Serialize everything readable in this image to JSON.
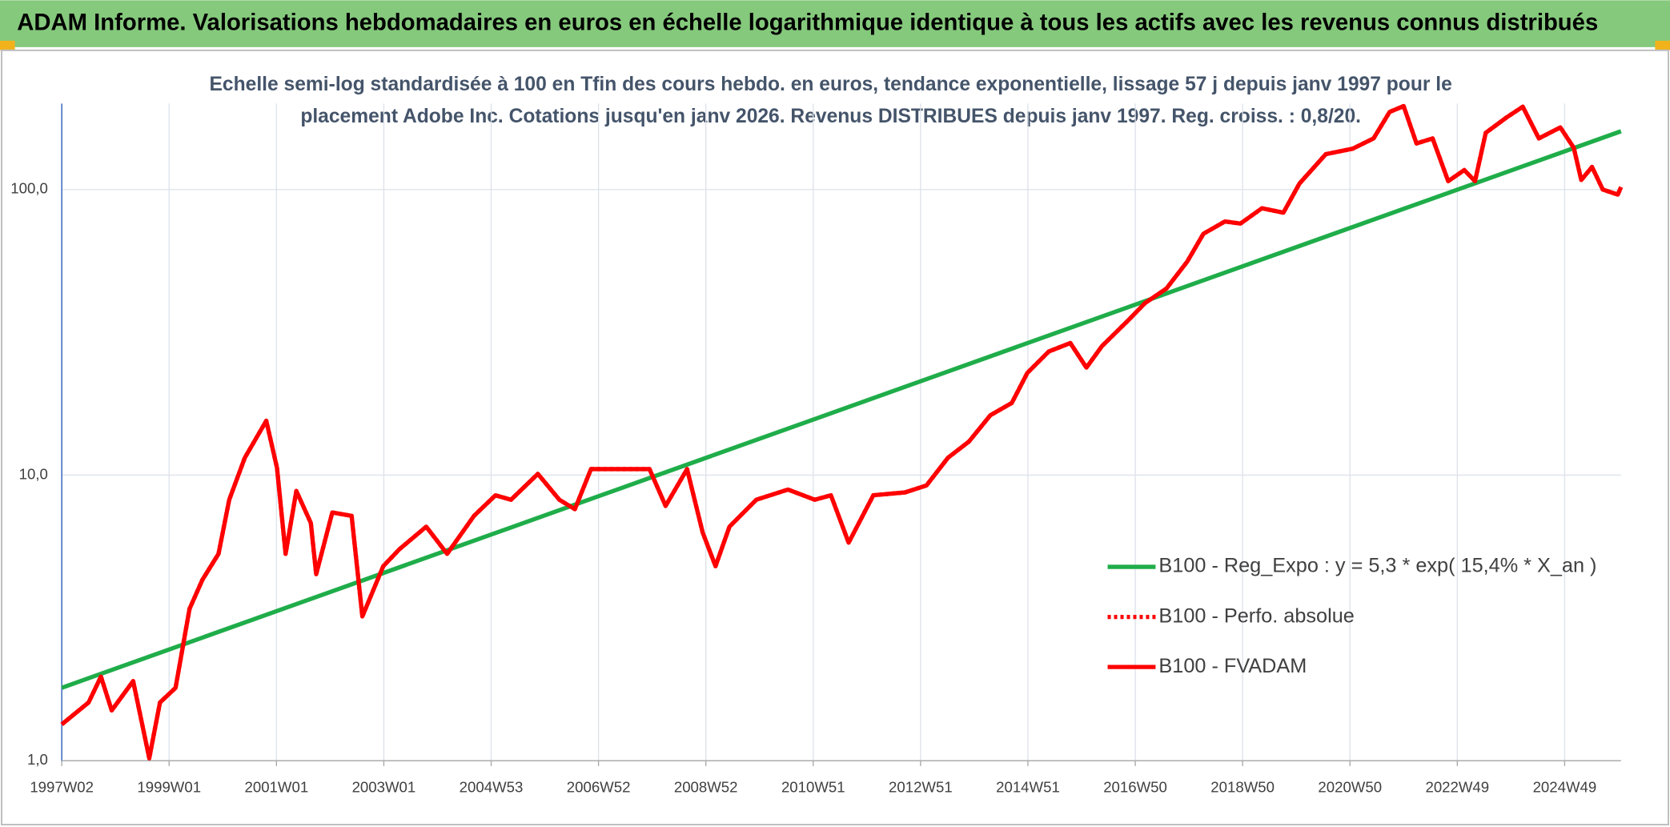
{
  "chart_data": {
    "type": "line",
    "title": "ADAM Informe. Valorisations hebdomadaires en euros en échelle logarithmique identique à tous les actifs avec les revenus connus distribués",
    "subtitle": [
      "Echelle semi-log standardisée à 100 en Tfin des cours hebdo. en euros, tendance exponentielle, lissage 57 j depuis janv 1997 pour le",
      "placement Adobe Inc. Cotations jusqu'en janv 2026. Revenus DISTRIBUES depuis janv 1997. Reg. croiss. : 0,8/20."
    ],
    "log_scale": true,
    "grid": true,
    "legend_position": "right",
    "xlim": [
      1997.0,
      2026.05
    ],
    "xticks": [
      {
        "value": 1997.0,
        "label": "1997W02"
      },
      {
        "value": 1999.0,
        "label": "1999W01"
      },
      {
        "value": 2001.0,
        "label": "2001W01"
      },
      {
        "value": 2003.0,
        "label": "2003W01"
      },
      {
        "value": 2005.0,
        "label": "2004W53"
      },
      {
        "value": 2007.0,
        "label": "2006W52"
      },
      {
        "value": 2009.0,
        "label": "2008W52"
      },
      {
        "value": 2011.0,
        "label": "2010W51"
      },
      {
        "value": 2013.0,
        "label": "2012W51"
      },
      {
        "value": 2015.0,
        "label": "2014W51"
      },
      {
        "value": 2017.0,
        "label": "2016W50"
      },
      {
        "value": 2019.0,
        "label": "2018W50"
      },
      {
        "value": 2021.0,
        "label": "2020W50"
      },
      {
        "value": 2023.0,
        "label": "2022W49"
      },
      {
        "value": 2025.0,
        "label": "2024W49"
      }
    ],
    "ylim": [
      1,
      200
    ],
    "yticks": [
      {
        "value": 1,
        "label": "1,0"
      },
      {
        "value": 10,
        "label": "10,0"
      },
      {
        "value": 100,
        "label": "100,0"
      }
    ],
    "series": [
      {
        "name": "B100 - Reg_Expo : y = 5,3 * exp( 15,4% *  X_an )",
        "color": "#1fad4a",
        "style": "solid",
        "x": [
          1997.0,
          2026.05
        ],
        "values": [
          1.8,
          160
        ]
      },
      {
        "name": "B100 - Perfo. absolue",
        "color": "#ff0000",
        "style": "dotted",
        "x": [
          1997.0,
          1997.5,
          1997.73,
          1997.93,
          1998.33,
          1998.63,
          1998.83,
          1999.12,
          1999.38,
          1999.62,
          1999.92,
          2000.12,
          2000.41,
          2000.81,
          2001.01,
          2001.17,
          2001.37,
          2001.64,
          2001.74,
          2002.04,
          2002.4,
          2002.6,
          2002.79,
          2002.99,
          2003.29,
          2003.79,
          2004.18,
          2004.68,
          2005.08,
          2005.37,
          2005.87,
          2006.27,
          2006.56,
          2006.86,
          2007.56,
          2007.95,
          2008.25,
          2008.65,
          2008.94,
          2009.18,
          2009.44,
          2009.94,
          2010.53,
          2011.03,
          2011.33,
          2011.66,
          2012.12,
          2012.71,
          2013.11,
          2013.51,
          2013.9,
          2014.3,
          2014.7,
          2014.99,
          2015.39,
          2015.79,
          2016.09,
          2016.38,
          2016.88,
          2017.18,
          2017.58,
          2017.97,
          2018.27,
          2018.67,
          2018.96,
          2019.36,
          2019.76,
          2020.06,
          2020.55,
          2021.05,
          2021.44,
          2021.74,
          2022.0,
          2022.24,
          2022.54,
          2022.83,
          2023.13,
          2023.33,
          2023.53,
          2023.92,
          2024.22,
          2024.52,
          2024.92,
          2025.17,
          2025.31,
          2025.51,
          2025.71,
          2025.99,
          2026.05
        ],
        "values": [
          1.34,
          1.6,
          1.97,
          1.5,
          1.9,
          1.02,
          1.6,
          1.8,
          3.4,
          4.3,
          5.3,
          8.2,
          11.5,
          15.5,
          10.6,
          5.3,
          8.8,
          6.8,
          4.5,
          7.4,
          7.2,
          3.2,
          3.9,
          4.8,
          5.5,
          6.6,
          5.3,
          7.2,
          8.5,
          8.2,
          10.1,
          8.2,
          7.6,
          10.5,
          10.5,
          10.5,
          7.8,
          10.5,
          6.3,
          4.8,
          6.6,
          8.2,
          8.9,
          8.2,
          8.5,
          5.8,
          8.5,
          8.7,
          9.2,
          11.5,
          13.1,
          16.2,
          17.9,
          22.8,
          27.1,
          29,
          23.8,
          28.3,
          35,
          40,
          45,
          56,
          70,
          77.3,
          76,
          86,
          83,
          105,
          133,
          139,
          151,
          187,
          196,
          145,
          151,
          107,
          117,
          107,
          158,
          179,
          195,
          151,
          165,
          140,
          108,
          120,
          100,
          96,
          102
        ]
      },
      {
        "name": "B100 - FVADAM",
        "color": "#ff0000",
        "style": "solid",
        "x": [
          1997.0,
          1997.5,
          1997.73,
          1997.93,
          1998.33,
          1998.63,
          1998.83,
          1999.12,
          1999.38,
          1999.62,
          1999.92,
          2000.12,
          2000.41,
          2000.81,
          2001.01,
          2001.17,
          2001.37,
          2001.64,
          2001.74,
          2002.04,
          2002.4,
          2002.6,
          2002.79,
          2002.99,
          2003.29,
          2003.79,
          2004.18,
          2004.68,
          2005.08,
          2005.37,
          2005.87,
          2006.27,
          2006.56,
          2006.86,
          2007.56,
          2007.95,
          2008.25,
          2008.65,
          2008.94,
          2009.18,
          2009.44,
          2009.94,
          2010.53,
          2011.03,
          2011.33,
          2011.66,
          2012.12,
          2012.71,
          2013.11,
          2013.51,
          2013.9,
          2014.3,
          2014.7,
          2014.99,
          2015.39,
          2015.79,
          2016.09,
          2016.38,
          2016.88,
          2017.18,
          2017.58,
          2017.97,
          2018.27,
          2018.67,
          2018.96,
          2019.36,
          2019.76,
          2020.06,
          2020.55,
          2021.05,
          2021.44,
          2021.74,
          2022.0,
          2022.24,
          2022.54,
          2022.83,
          2023.13,
          2023.33,
          2023.53,
          2023.92,
          2024.22,
          2024.52,
          2024.92,
          2025.17,
          2025.31,
          2025.51,
          2025.71,
          2025.99,
          2026.05
        ],
        "values": [
          1.34,
          1.6,
          1.97,
          1.5,
          1.9,
          1.02,
          1.6,
          1.8,
          3.4,
          4.3,
          5.3,
          8.2,
          11.5,
          15.5,
          10.6,
          5.3,
          8.8,
          6.8,
          4.5,
          7.4,
          7.2,
          3.2,
          3.9,
          4.8,
          5.5,
          6.6,
          5.3,
          7.2,
          8.5,
          8.2,
          10.1,
          8.2,
          7.6,
          10.5,
          10.5,
          10.5,
          7.8,
          10.5,
          6.3,
          4.8,
          6.6,
          8.2,
          8.9,
          8.2,
          8.5,
          5.8,
          8.5,
          8.7,
          9.2,
          11.5,
          13.1,
          16.2,
          17.9,
          22.8,
          27.1,
          29,
          23.8,
          28.3,
          35,
          40,
          45,
          56,
          70,
          77.3,
          76,
          86,
          83,
          105,
          133,
          139,
          151,
          187,
          196,
          145,
          151,
          107,
          117,
          107,
          158,
          179,
          195,
          151,
          165,
          140,
          108,
          120,
          100,
          96,
          102
        ]
      }
    ]
  }
}
